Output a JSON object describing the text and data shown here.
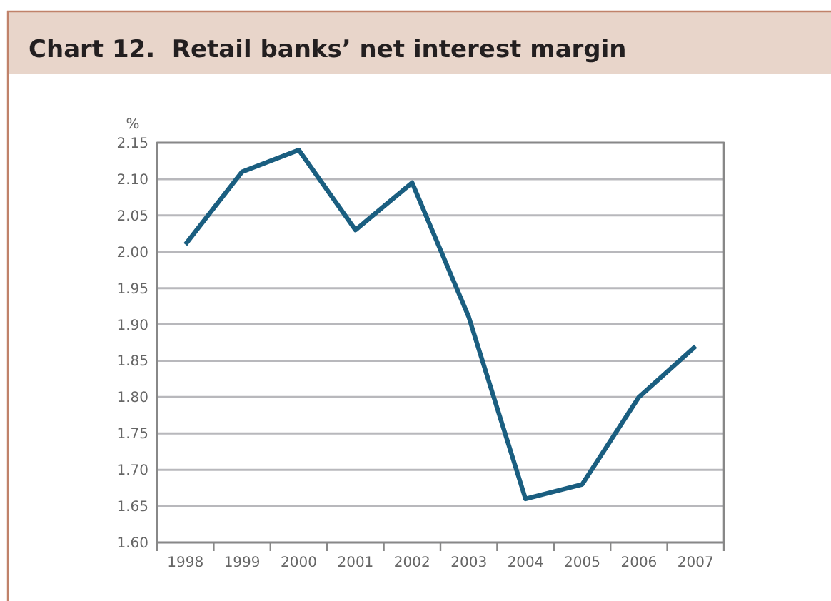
{
  "chart_data": {
    "type": "line",
    "title": "Chart 12.  Retail banks’ net interest margin",
    "ylabel": "%",
    "categories": [
      "1998",
      "1999",
      "2000",
      "2001",
      "2002",
      "2003",
      "2004",
      "2005",
      "2006",
      "2007"
    ],
    "series": [
      {
        "color": "#1a5e80",
        "values": [
          2.01,
          2.11,
          2.14,
          2.03,
          2.095,
          1.91,
          1.66,
          1.68,
          1.8,
          1.87
        ]
      }
    ],
    "ylim": [
      1.6,
      2.15
    ],
    "yticks": [
      {
        "value": 1.6,
        "label": "1.60"
      },
      {
        "value": 1.65,
        "label": "1.65"
      },
      {
        "value": 1.7,
        "label": "1.70"
      },
      {
        "value": 1.75,
        "label": "1.75"
      },
      {
        "value": 1.8,
        "label": "1.80"
      },
      {
        "value": 1.85,
        "label": "1.85"
      },
      {
        "value": 1.9,
        "label": "1.90"
      },
      {
        "value": 1.95,
        "label": "1.95"
      },
      {
        "value": 2.0,
        "label": "2.00"
      },
      {
        "value": 2.05,
        "label": "2.05"
      },
      {
        "value": 2.1,
        "label": "2.10"
      },
      {
        "value": 2.15,
        "label": "2.15"
      }
    ],
    "grid": "y",
    "marker": "none",
    "line_style": "solid"
  }
}
